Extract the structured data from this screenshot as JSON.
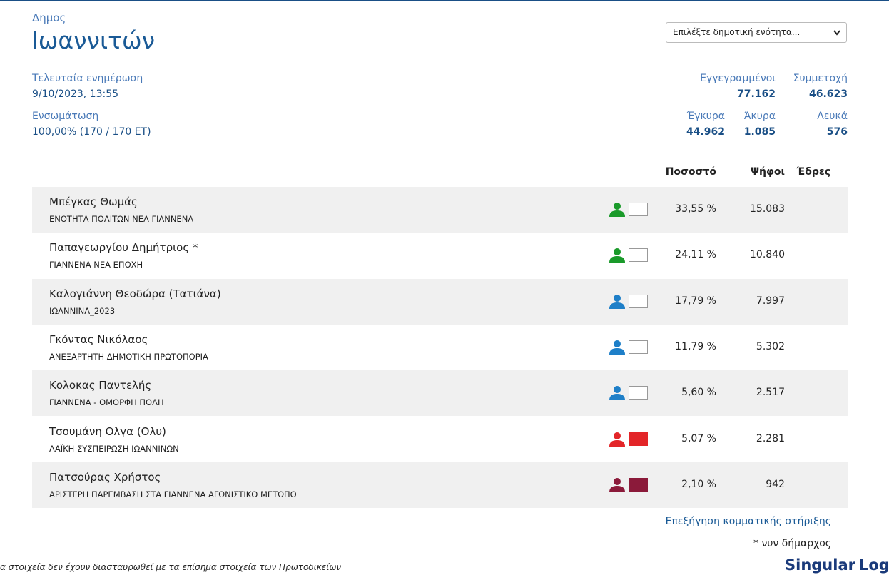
{
  "header": {
    "label": "Δημος",
    "title": "Ιωαννιτών",
    "select": "Επιλέξτε δημοτική ενότητα..."
  },
  "stats": {
    "last_update": {
      "label": "Τελευταία ενημέρωση",
      "value": "9/10/2023, 13:55"
    },
    "incorporation": {
      "label": "Ενσωμάτωση",
      "value": "100,00% (170 / 170 ΕΤ)"
    },
    "registered": {
      "label": "Εγγεγραμμένοι",
      "value": "77.162"
    },
    "participation": {
      "label": "Συμμετοχή",
      "value": "46.623"
    },
    "valid": {
      "label": "Έγκυρα",
      "value": "44.962"
    },
    "invalid": {
      "label": "Άκυρα",
      "value": "1.085"
    },
    "blank": {
      "label": "Λευκά",
      "value": "576"
    }
  },
  "table": {
    "headers": [
      "Ποσοστό",
      "Ψήφοι",
      "Έδρες"
    ],
    "rows": [
      {
        "name": "Μπέγκας Θωμάς",
        "party": "ΕΝΟΤΗΤΑ ΠΟΛΙΤΩΝ ΝΕΑ ΓΙΑΝΝΕΝΑ",
        "percent": "33,55 %",
        "votes": "15.083",
        "icon_color": "#1a9a2a",
        "box_color": "#ffffff"
      },
      {
        "name": "Παπαγεωργίου Δημήτριος *",
        "party": "ΓΙΑΝΝΕΝΑ ΝΕΑ ΕΠΟΧΗ",
        "percent": "24,11 %",
        "votes": "10.840",
        "icon_color": "#1a9a2a",
        "box_color": "#ffffff"
      },
      {
        "name": "Καλογιάννη Θεοδώρα (Τατιάνα)",
        "party": "ΙΩΑΝΝΙΝΑ_2023",
        "percent": "17,79 %",
        "votes": "7.997",
        "icon_color": "#1e7fc8",
        "box_color": "#ffffff"
      },
      {
        "name": "Γκόντας Νικόλαος",
        "party": "ΑΝΕΞΑΡΤΗΤΗ ΔΗΜΟΤΙΚΗ ΠΡΩΤΟΠΟΡΙΑ",
        "percent": "11,79 %",
        "votes": "5.302",
        "icon_color": "#1e7fc8",
        "box_color": "#ffffff"
      },
      {
        "name": "Κολοκας Παντελής",
        "party": "ΓΙΑΝΝΕΝΑ - ΟΜΟΡΦΗ ΠΟΛΗ",
        "percent": "5,60 %",
        "votes": "2.517",
        "icon_color": "#1e7fc8",
        "box_color": "#ffffff"
      },
      {
        "name": "Τσουμάνη Ολγα (Ολυ)",
        "party": "ΛΑΪΚΗ ΣΥΣΠΕΙΡΩΣΗ ΙΩΑΝΝΙΝΩΝ",
        "percent": "5,07 %",
        "votes": "2.281",
        "icon_color": "#e32528",
        "box_color": "#e32528"
      },
      {
        "name": "Πατσούρας Χρήστος",
        "party": "ΑΡΙΣΤΕΡΗ ΠΑΡΕΜΒΑΣΗ ΣΤΑ ΓΙΑΝΝΕΝΑ ΑΓΩΝΙΣΤΙΚΟ ΜΕΤΩΠΟ",
        "percent": "2,10 %",
        "votes": "942",
        "icon_color": "#8b1a3a",
        "box_color": "#8b1a3a"
      }
    ]
  },
  "footer": {
    "support_link": "Επεξήγηση κομματικής στήριξης",
    "note": "* νυν δήμαρχος",
    "disclaimer": "α στοιχεία δεν έχουν διασταυρωθεί με τα επίσημα στοιχεία των Πρωτοδικείων",
    "logo": [
      "Singular",
      "Logic"
    ]
  }
}
